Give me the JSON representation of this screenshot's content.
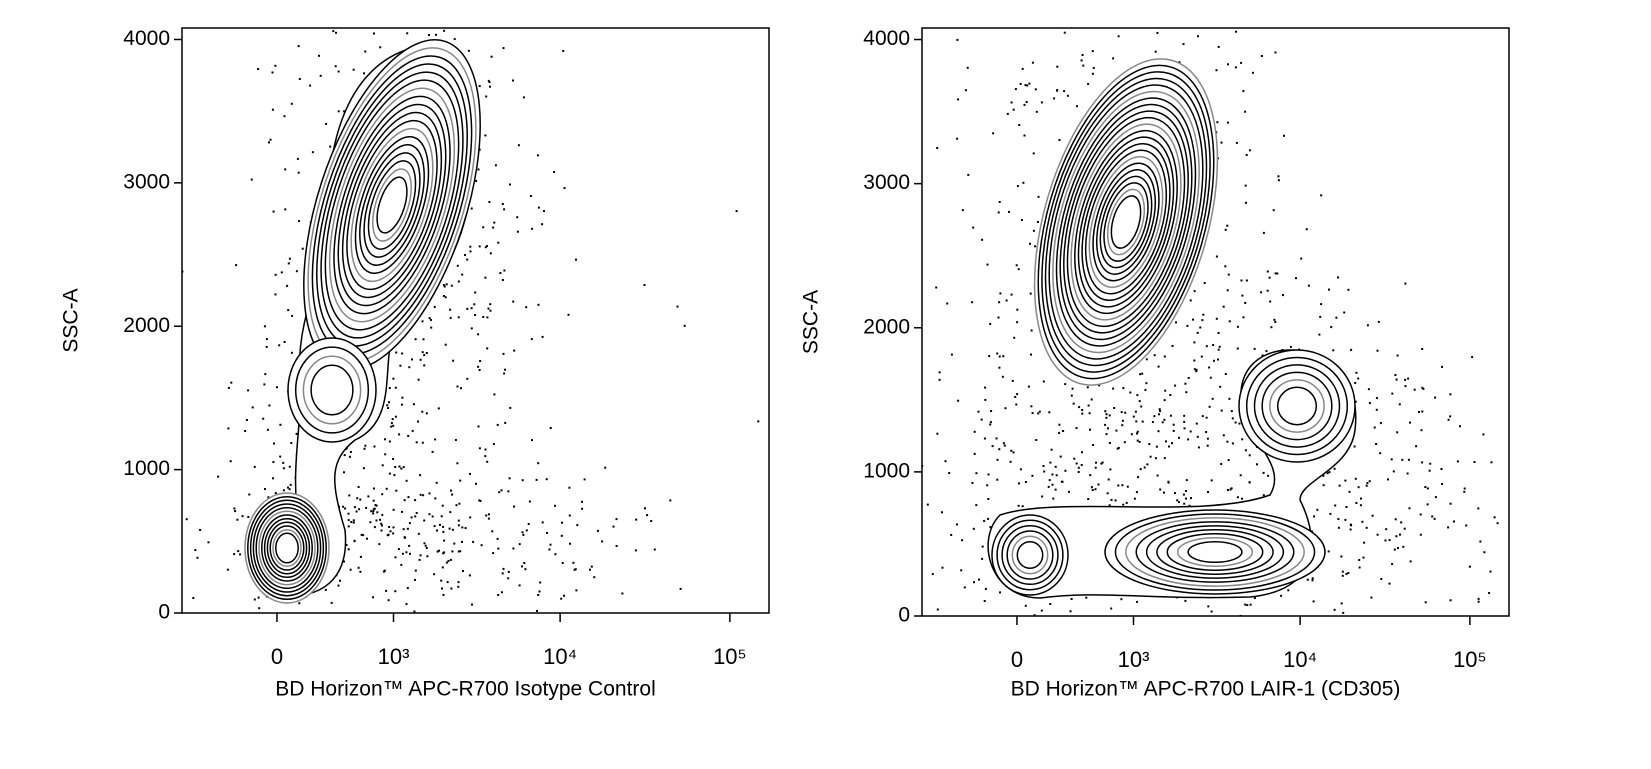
{
  "chart_data": [
    {
      "type": "contour",
      "x_label": "BD Horizon™ APC-R700 Isotype Control",
      "y_label": "SSC-A",
      "xscale": "biexponential",
      "xlim": [
        -720,
        170000
      ],
      "xticks": [
        0,
        {
          "value": 1000,
          "label": "10³"
        },
        {
          "value": 10000,
          "label": "10⁴"
        },
        {
          "value": 100000,
          "label": "10⁵"
        }
      ],
      "ylim": [
        0,
        4080
      ],
      "yticks": [
        0,
        1000,
        2000,
        3000,
        4000
      ],
      "color": "#000000"
    },
    {
      "type": "contour",
      "x_label": "BD Horizon™ APC-R700 LAIR-1 (CD305)",
      "y_label": "SSC-A",
      "xscale": "biexponential",
      "xlim": [
        -720,
        170000
      ],
      "xticks": [
        0,
        {
          "value": 1000,
          "label": "10³"
        },
        {
          "value": 10000,
          "label": "10⁴"
        },
        {
          "value": 100000,
          "label": "10⁵"
        }
      ],
      "ylim": [
        0,
        4080
      ],
      "yticks": [
        0,
        1000,
        2000,
        3000,
        4000
      ],
      "color": "#000000"
    }
  ]
}
